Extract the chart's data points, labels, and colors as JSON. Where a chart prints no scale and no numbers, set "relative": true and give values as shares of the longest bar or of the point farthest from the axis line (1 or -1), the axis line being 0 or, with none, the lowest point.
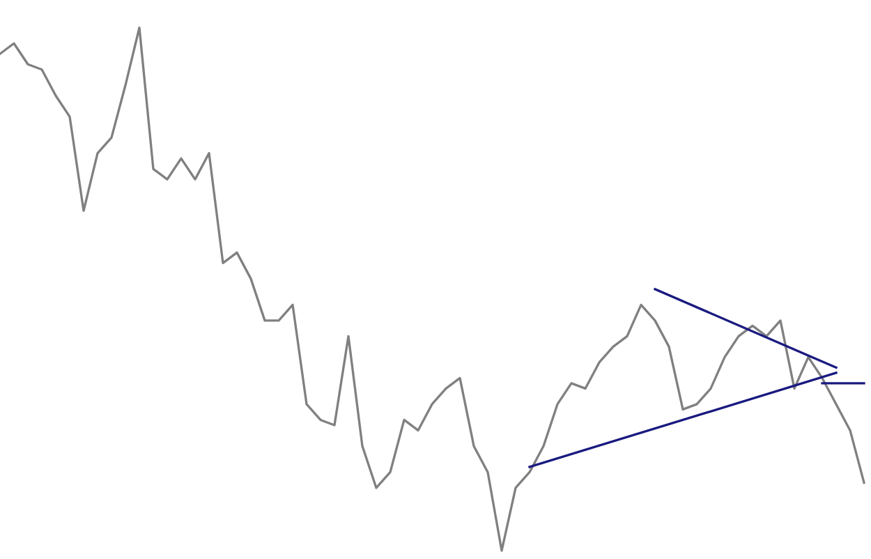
{
  "chart_data": {
    "type": "line",
    "relative": true,
    "marker": "none",
    "line_style": "solid",
    "categories": [
      null,
      null,
      null,
      null,
      null,
      null,
      null,
      null,
      null,
      null,
      null,
      null,
      null,
      null,
      null,
      null,
      null,
      null,
      null,
      null,
      null,
      null,
      null,
      null,
      null,
      null,
      null,
      null,
      null,
      null,
      null,
      null,
      null,
      null,
      null,
      null,
      null,
      null,
      null,
      null,
      null,
      null,
      null,
      null,
      null,
      null,
      null,
      null,
      null,
      null,
      null,
      null,
      null,
      null,
      null,
      null,
      null,
      null,
      null,
      null,
      null,
      null,
      null
    ],
    "series": [
      {
        "color": "#808080",
        "values": [
          0.95,
          0.97,
          0.93,
          0.92,
          0.87,
          0.83,
          0.65,
          0.76,
          0.79,
          0.89,
          1,
          0.73,
          0.71,
          0.75,
          0.71,
          0.76,
          0.55,
          0.57,
          0.52,
          0.44,
          0.44,
          0.47,
          0.28,
          0.25,
          0.24,
          0.41,
          0.2,
          0.12,
          0.15,
          0.25,
          0.23,
          0.28,
          0.31,
          0.33,
          0.2,
          0.15,
          0,
          0.12,
          0.15,
          0.2,
          0.28,
          0.32,
          0.31,
          0.36,
          0.39,
          0.41,
          0.47,
          0.44,
          0.39,
          0.27,
          0.28,
          0.31,
          0.37,
          0.41,
          0.43,
          0.41,
          0.44,
          0.31,
          0.37,
          0.33,
          0.28,
          0.23,
          0.13
        ]
      },
      {
        "type": "line",
        "color": "#1a1a80",
        "values": [
          null,
          null,
          null,
          null,
          null,
          null,
          null,
          null,
          null,
          null,
          null,
          null,
          null,
          null,
          null,
          null,
          null,
          null,
          null,
          null,
          null,
          null,
          null,
          null,
          null,
          null,
          null,
          null,
          null,
          null,
          null,
          null,
          null,
          null,
          null,
          null,
          null,
          null,
          0.16,
          null,
          null,
          null,
          null,
          null,
          null,
          null,
          null,
          null,
          null,
          null,
          null,
          null,
          null,
          null,
          null,
          null,
          null,
          null,
          null,
          null,
          0.34,
          null,
          null
        ]
      },
      {
        "type": "line",
        "color": "#1a1a80",
        "values": [
          null,
          null,
          null,
          null,
          null,
          null,
          null,
          null,
          null,
          null,
          null,
          null,
          null,
          null,
          null,
          null,
          null,
          null,
          null,
          null,
          null,
          null,
          null,
          null,
          null,
          null,
          null,
          null,
          null,
          null,
          null,
          null,
          null,
          null,
          null,
          null,
          null,
          null,
          null,
          null,
          null,
          null,
          null,
          null,
          null,
          null,
          null,
          0.5,
          null,
          null,
          null,
          null,
          null,
          null,
          null,
          null,
          null,
          null,
          null,
          null,
          0.35,
          null,
          null
        ]
      },
      {
        "type": "line",
        "color": "#1a1a80",
        "values": [
          null,
          null,
          null,
          null,
          null,
          null,
          null,
          null,
          null,
          null,
          null,
          null,
          null,
          null,
          null,
          null,
          null,
          null,
          null,
          null,
          null,
          null,
          null,
          null,
          null,
          null,
          null,
          null,
          null,
          null,
          null,
          null,
          null,
          null,
          null,
          null,
          null,
          null,
          null,
          null,
          null,
          null,
          null,
          null,
          null,
          null,
          null,
          null,
          null,
          null,
          null,
          null,
          null,
          null,
          null,
          null,
          null,
          null,
          null,
          0.32,
          null,
          null,
          0.32
        ]
      }
    ]
  }
}
